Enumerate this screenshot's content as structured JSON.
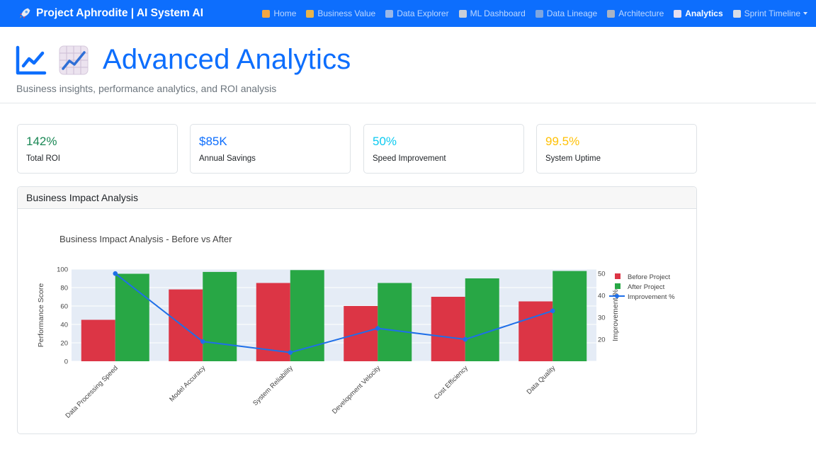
{
  "navbar": {
    "brand": "Project Aphrodite | AI System AI",
    "items": [
      {
        "label": "Home",
        "icon": "house-icon"
      },
      {
        "label": "Business Value",
        "icon": "money-bag-icon"
      },
      {
        "label": "Data Explorer",
        "icon": "bar-chart-icon"
      },
      {
        "label": "ML Dashboard",
        "icon": "robot-icon"
      },
      {
        "label": "Data Lineage",
        "icon": "lineage-icon"
      },
      {
        "label": "Architecture",
        "icon": "architecture-icon"
      },
      {
        "label": "Analytics",
        "icon": "chart-increasing-icon",
        "active": true
      },
      {
        "label": "Sprint Timeline",
        "icon": "calendar-icon",
        "dropdown": true
      }
    ]
  },
  "header": {
    "title": "Advanced Analytics",
    "subtitle": "Business insights, performance analytics, and ROI analysis"
  },
  "kpis": [
    {
      "value": "142%",
      "label": "Total ROI",
      "color": "#198754"
    },
    {
      "value": "$85K",
      "label": "Annual Savings",
      "color": "#0d6efd"
    },
    {
      "value": "50%",
      "label": "Speed Improvement",
      "color": "#0dcaf0"
    },
    {
      "value": "99.5%",
      "label": "System Uptime",
      "color": "#ffc107"
    }
  ],
  "card": {
    "title": "Business Impact Analysis"
  },
  "chart_data": {
    "type": "bar",
    "title": "Business Impact Analysis - Before vs After",
    "categories": [
      "Data Processing Speed",
      "Model Accuracy",
      "System Reliability",
      "Development Velocity",
      "Cost Efficiency",
      "Data Quality"
    ],
    "series": [
      {
        "name": "Before Project",
        "type": "bar",
        "axis": "left",
        "color": "#dc3545",
        "values": [
          45,
          78,
          85,
          60,
          70,
          65
        ]
      },
      {
        "name": "After Project",
        "type": "bar",
        "axis": "left",
        "color": "#28a745",
        "values": [
          95,
          97,
          99,
          85,
          90,
          98
        ]
      },
      {
        "name": "Improvement %",
        "type": "line",
        "axis": "right",
        "color": "#1f6fe8",
        "values": [
          50,
          19,
          14,
          25,
          20,
          33
        ]
      }
    ],
    "ylabel": "Performance Score",
    "y2label": "Improvement %",
    "ylim": [
      0,
      100
    ],
    "y2lim": [
      10,
      52
    ],
    "yticks": [
      0,
      20,
      40,
      60,
      80,
      100
    ],
    "y2ticks": [
      20,
      30,
      40,
      50
    ],
    "grid": true,
    "legend_position": "right"
  }
}
